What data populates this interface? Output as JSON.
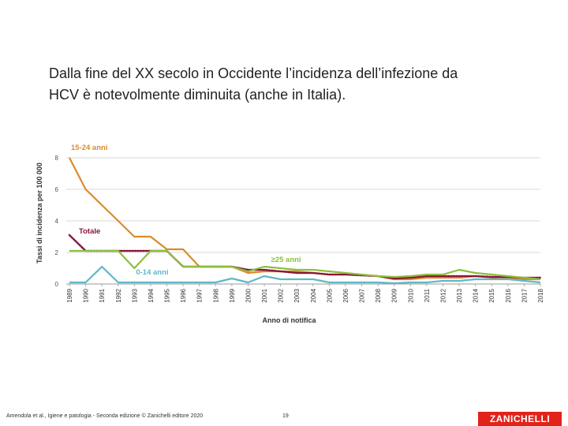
{
  "slide": {
    "line1": "Dalla fine del XX secolo in Occidente l’incidenza dell’infezione da",
    "line2": "HCV è notevolmente diminuita (anche in Italia)."
  },
  "footer": {
    "citation": "Amendola et al., Igiene e patologia - Seconda edizione © Zanichelli editore 2020",
    "page": "19",
    "brand": "ZANICHELLI"
  },
  "chart_data": {
    "type": "line",
    "xlabel": "Anno di notifica",
    "ylabel": "Tassi di incidenza per 100 000",
    "ylim": [
      0,
      8.5
    ],
    "yticks": [
      0,
      2,
      4,
      6,
      8
    ],
    "grid": true,
    "categories": [
      "1989",
      "1990",
      "1991",
      "1992",
      "1993",
      "1994",
      "1995",
      "1996",
      "1997",
      "1998",
      "1999",
      "2000",
      "2001",
      "2002",
      "2003",
      "2004",
      "2005",
      "2006",
      "2007",
      "2008",
      "2009",
      "2010",
      "2011",
      "2012",
      "2013",
      "2014",
      "2015",
      "2016",
      "2017",
      "2018"
    ],
    "series": [
      {
        "name": "15-24 anni",
        "color": "#d98b2b",
        "dash": "",
        "values": [
          8,
          6,
          5,
          4,
          3,
          3,
          2.2,
          2.2,
          1.1,
          1.1,
          1.1,
          0.7,
          0.8,
          0.8,
          0.8,
          0.7,
          0.6,
          0.6,
          0.55,
          0.5,
          0.3,
          0.3,
          0.4,
          0.4,
          0.4,
          0.5,
          0.4,
          0.4,
          0.3,
          0.3
        ]
      },
      {
        "name": "Totale",
        "color": "#8a1538",
        "dash": "1.5,2",
        "values": [
          3.1,
          2.1,
          2.1,
          2.1,
          2.1,
          2.1,
          2.1,
          1.1,
          1.1,
          1.1,
          1.1,
          0.9,
          0.9,
          0.8,
          0.7,
          0.7,
          0.6,
          0.6,
          0.55,
          0.5,
          0.35,
          0.4,
          0.5,
          0.5,
          0.5,
          0.5,
          0.45,
          0.45,
          0.4,
          0.4
        ]
      },
      {
        "name": "≥25 anni",
        "color": "#8cbf3f",
        "dash": "",
        "values": [
          2.1,
          2.1,
          2.1,
          2.1,
          1,
          2.1,
          2.1,
          1.1,
          1.1,
          1.1,
          1.1,
          0.8,
          1.1,
          1,
          0.9,
          0.9,
          0.8,
          0.7,
          0.6,
          0.5,
          0.45,
          0.5,
          0.6,
          0.6,
          0.9,
          0.7,
          0.6,
          0.5,
          0.4,
          0.3
        ]
      },
      {
        "name": "0-14 anni",
        "color": "#5fb8c7",
        "dash": "",
        "values": [
          0.1,
          0.1,
          1.1,
          0.1,
          0.1,
          0.1,
          0.1,
          0.1,
          0.1,
          0.1,
          0.35,
          0.1,
          0.5,
          0.3,
          0.3,
          0.3,
          0.1,
          0.1,
          0.1,
          0.1,
          0.05,
          0.1,
          0.1,
          0.2,
          0.2,
          0.3,
          0.3,
          0.3,
          0.2,
          0.1
        ]
      }
    ]
  }
}
